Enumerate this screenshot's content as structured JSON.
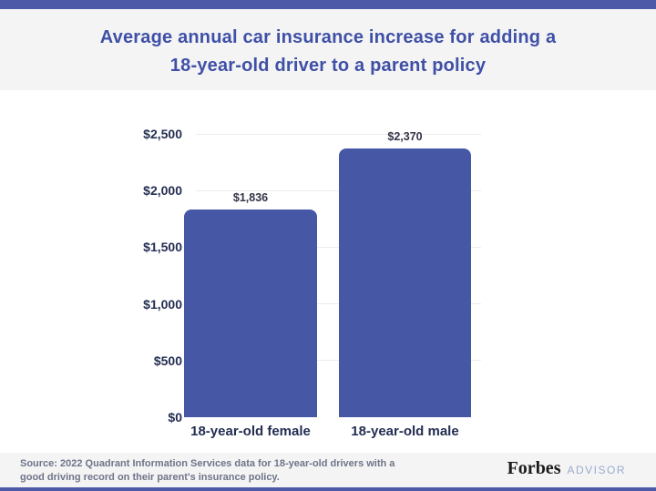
{
  "colors": {
    "accent_band": "#4c5aa7",
    "bar_fill": "#4657a6",
    "title_text": "#3f50a6",
    "axis_text": "#242e52",
    "value_label_text": "#333548",
    "source_text": "#6f7488",
    "band_background": "#f4f4f5",
    "gridline": "#ececec",
    "forbes_logo": "#1b1b1b",
    "advisor_logo": "#9aabcc"
  },
  "header": {
    "title_line1": "Average annual car insurance increase for adding a",
    "title_line2": "18-year-old driver to a parent policy"
  },
  "chart_data": {
    "type": "bar",
    "title": "Average annual car insurance increase for adding a 18-year-old driver to a parent policy",
    "categories": [
      "18-year-old female",
      "18-year-old male"
    ],
    "values": [
      1836,
      2370
    ],
    "value_labels": [
      "$1,836",
      "$2,370"
    ],
    "xlabel": "",
    "ylabel": "",
    "ylim": [
      0,
      2500
    ],
    "yticks": [
      {
        "value": 0,
        "label": "$0"
      },
      {
        "value": 500,
        "label": "$500"
      },
      {
        "value": 1000,
        "label": "$1,000"
      },
      {
        "value": 1500,
        "label": "$1,500"
      },
      {
        "value": 2000,
        "label": "$2,000"
      },
      {
        "value": 2500,
        "label": "$2,500"
      }
    ],
    "grid": "horizontal",
    "legend": "none",
    "bar_color": "#4657a6"
  },
  "footer": {
    "source_line1": "Source: 2022 Quadrant Information Services data for 18-year-old drivers with a",
    "source_line2": "good driving record on their parent's insurance policy.",
    "brand": {
      "name": "Forbes",
      "suffix": "ADVISOR"
    }
  }
}
